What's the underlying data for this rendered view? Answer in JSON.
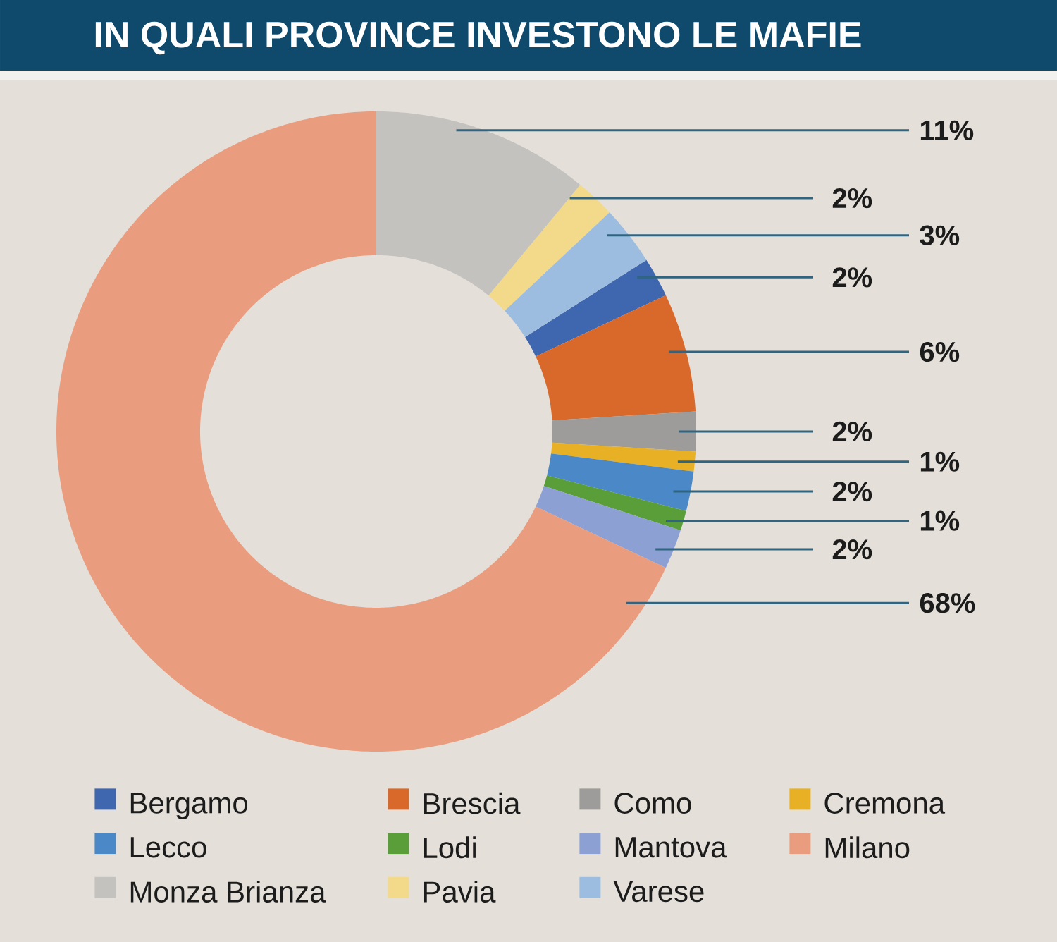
{
  "chart_data": {
    "type": "donut",
    "title": "IN QUALI PROVINCE INVESTONO LE MAFIE",
    "categories": [
      "Bergamo",
      "Brescia",
      "Como",
      "Cremona",
      "Lecco",
      "Lodi",
      "Mantova",
      "Milano",
      "Monza Brianza",
      "Pavia",
      "Varese"
    ],
    "values": [
      2,
      6,
      2,
      1,
      2,
      1,
      2,
      68,
      11,
      2,
      3
    ],
    "colors": [
      "#3f67b0",
      "#d9692a",
      "#9e9c9a",
      "#e8b024",
      "#4a88c8",
      "#5a9e3a",
      "#8ca0d4",
      "#e99c7e",
      "#c4c2bf",
      "#f3d98a",
      "#9dbde0"
    ],
    "value_labels": [
      "2%",
      "6%",
      "2%",
      "1%",
      "2%",
      "1%",
      "2%",
      "68%",
      "11%",
      "2%",
      "3%"
    ],
    "legend": "bottom"
  }
}
